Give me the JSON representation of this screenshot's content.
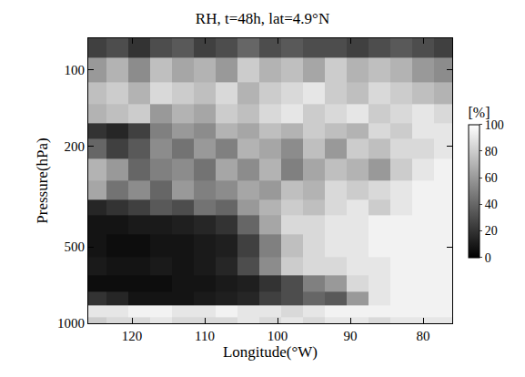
{
  "chart_data": {
    "type": "heatmap",
    "title": "RH, t=48h, lat=4.9°N",
    "x_label": "Longitude(°W)",
    "y_label": "Pressure(hPa)",
    "log": "y",
    "x": [
      125,
      122,
      119,
      116,
      113,
      110,
      107,
      104,
      101,
      98,
      95,
      92,
      89,
      86,
      83,
      80,
      77
    ],
    "y": [
      80,
      100,
      125,
      150,
      175,
      200,
      250,
      300,
      350,
      400,
      500,
      600,
      700,
      800,
      900,
      1000
    ],
    "z": [
      [
        25,
        30,
        20,
        30,
        35,
        25,
        30,
        40,
        30,
        35,
        30,
        30,
        25,
        30,
        35,
        30,
        25
      ],
      [
        60,
        70,
        55,
        75,
        65,
        70,
        60,
        80,
        70,
        75,
        65,
        80,
        70,
        75,
        70,
        60,
        55
      ],
      [
        75,
        80,
        70,
        85,
        80,
        75,
        85,
        70,
        80,
        85,
        90,
        80,
        75,
        85,
        80,
        75,
        70
      ],
      [
        70,
        75,
        80,
        60,
        70,
        65,
        80,
        75,
        85,
        90,
        80,
        85,
        90,
        80,
        85,
        90,
        85
      ],
      [
        20,
        15,
        25,
        50,
        60,
        55,
        70,
        65,
        75,
        70,
        80,
        75,
        70,
        85,
        80,
        90,
        90
      ],
      [
        40,
        25,
        35,
        55,
        45,
        60,
        50,
        70,
        65,
        55,
        75,
        60,
        80,
        75,
        85,
        85,
        90
      ],
      [
        70,
        60,
        40,
        50,
        55,
        45,
        65,
        55,
        70,
        50,
        65,
        75,
        70,
        60,
        80,
        90,
        95
      ],
      [
        65,
        45,
        55,
        40,
        60,
        50,
        55,
        65,
        60,
        75,
        70,
        85,
        80,
        85,
        90,
        95,
        95
      ],
      [
        15,
        20,
        25,
        35,
        30,
        45,
        40,
        60,
        70,
        80,
        75,
        85,
        90,
        80,
        90,
        95,
        95
      ],
      [
        8,
        8,
        10,
        10,
        12,
        15,
        20,
        40,
        65,
        85,
        85,
        90,
        90,
        95,
        95,
        95,
        95
      ],
      [
        8,
        5,
        5,
        8,
        8,
        10,
        12,
        25,
        50,
        75,
        85,
        90,
        90,
        95,
        95,
        95,
        95
      ],
      [
        10,
        8,
        8,
        10,
        8,
        10,
        15,
        30,
        55,
        80,
        85,
        85,
        90,
        90,
        95,
        95,
        95
      ],
      [
        5,
        5,
        5,
        5,
        8,
        8,
        10,
        12,
        20,
        30,
        50,
        60,
        85,
        90,
        95,
        95,
        95
      ],
      [
        20,
        15,
        8,
        8,
        8,
        10,
        12,
        15,
        25,
        30,
        40,
        35,
        60,
        90,
        95,
        95,
        95
      ],
      [
        90,
        90,
        95,
        95,
        90,
        90,
        95,
        90,
        90,
        85,
        90,
        95,
        95,
        95,
        95,
        95,
        95
      ],
      [
        80,
        85,
        85,
        90,
        85,
        85,
        85,
        90,
        85,
        90,
        85,
        90,
        90,
        85,
        90,
        90,
        90
      ]
    ],
    "xlim": [
      126,
      76
    ],
    "ylim": [
      1000,
      75
    ],
    "xticks": [
      120,
      110,
      100,
      90,
      80
    ],
    "yticks": [
      100,
      200,
      500,
      1000
    ],
    "colorbar": {
      "title": "[%]",
      "range": [
        0,
        100
      ],
      "ticks": [
        0,
        20,
        40,
        60,
        80,
        100
      ]
    }
  }
}
